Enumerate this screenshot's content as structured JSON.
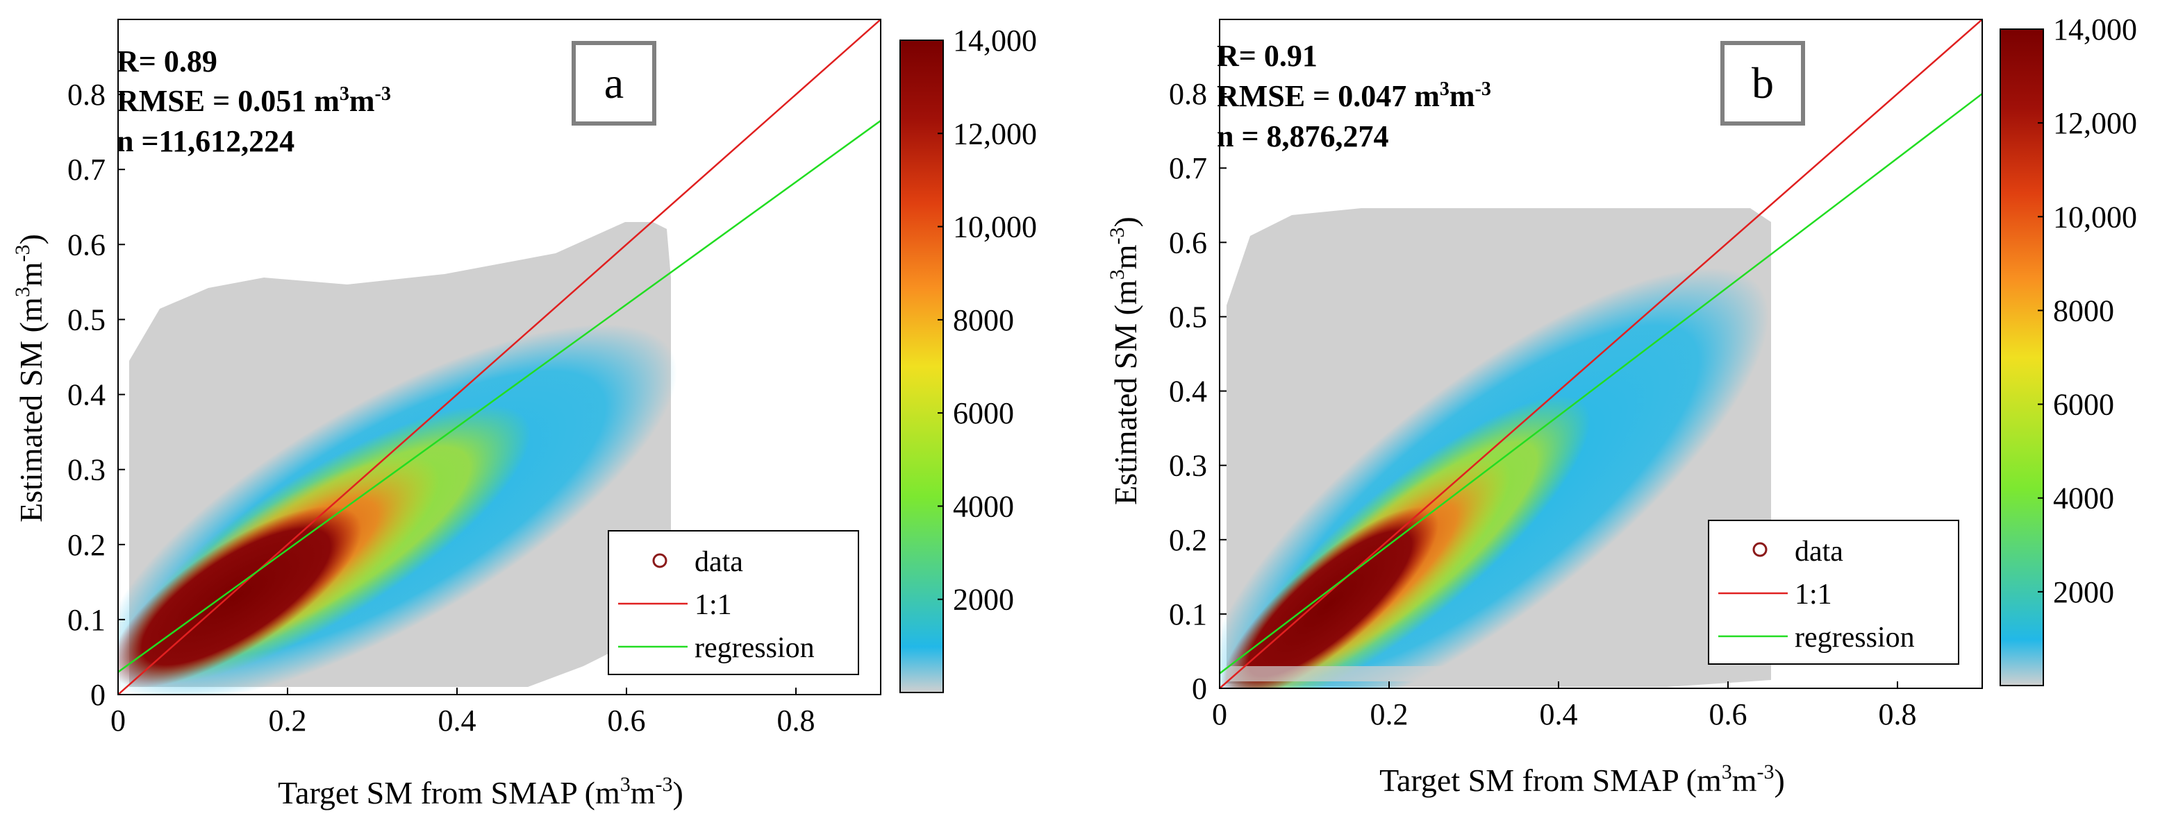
{
  "figure": {
    "panels": [
      {
        "letter": "a",
        "stats": {
          "r": "R= 0.89",
          "rmse_prefix": "RMSE = 0.051 m",
          "rmse_unit_mid": "m",
          "n": "n =11,612,224"
        },
        "xlabel": "Target SM from SMAP",
        "ylabel": "Estimated SM",
        "unit_base": "m",
        "unit_sup3": "3",
        "unit_sup_neg3": "-3",
        "legend": [
          "data",
          "1:1",
          "regression"
        ],
        "colorbar_ticks": [
          "2000",
          "4000",
          "6000",
          "8000",
          "10,000",
          "12,000",
          "14,000"
        ]
      },
      {
        "letter": "b",
        "stats": {
          "r": "R= 0.91",
          "rmse_prefix": "RMSE = 0.047 m",
          "rmse_unit_mid": "m",
          "n": "n = 8,876,274"
        },
        "xlabel": "Target SM from SMAP",
        "ylabel": "Estimated SM",
        "unit_base": "m",
        "unit_sup3": "3",
        "unit_sup_neg3": "-3",
        "legend": [
          "data",
          "1:1",
          "regression"
        ],
        "colorbar_ticks": [
          "2000",
          "4000",
          "6000",
          "8000",
          "10,000",
          "12,000",
          "14,000"
        ]
      }
    ]
  },
  "chart_data": [
    {
      "type": "scatter",
      "title": "a",
      "xlabel": "Target SM from SMAP (m3m-3)",
      "ylabel": "Estimated SM (m3m-3)",
      "xlim": [
        0,
        0.9
      ],
      "ylim": [
        0,
        0.9
      ],
      "x_ticks": [
        0,
        0.2,
        0.4,
        0.6,
        0.8
      ],
      "x_tick_labels": [
        "0",
        "0.2",
        "0.4",
        "0.6",
        "0.8"
      ],
      "y_ticks": [
        0,
        0.1,
        0.2,
        0.3,
        0.4,
        0.5,
        0.6,
        0.7,
        0.8
      ],
      "y_tick_labels": [
        "0",
        "0.1",
        "0.2",
        "0.3",
        "0.4",
        "0.5",
        "0.6",
        "0.7",
        "0.8"
      ],
      "R": 0.89,
      "RMSE": 0.051,
      "n": 11612224,
      "series": [
        {
          "name": "data",
          "kind": "density-scatter",
          "x_range": [
            0.01,
            0.65
          ],
          "y_range": [
            0.02,
            0.65
          ],
          "core_center": [
            0.12,
            0.12
          ],
          "spread_slope": 0.62
        },
        {
          "name": "1:1",
          "kind": "line",
          "x": [
            0,
            0.9
          ],
          "y": [
            0,
            0.9
          ],
          "color": "#e02020"
        },
        {
          "name": "regression",
          "kind": "line",
          "x": [
            0,
            0.9
          ],
          "y": [
            0.03,
            0.765
          ],
          "color": "#22dd22"
        }
      ],
      "colorbar": {
        "min": 0,
        "max": 14000,
        "ticks": [
          2000,
          4000,
          6000,
          8000,
          10000,
          12000,
          14000
        ],
        "colormap": [
          "#d0d0d0",
          "#22b8e8",
          "#7ce830",
          "#f0e020",
          "#f89020",
          "#e04010",
          "#a01008",
          "#7a0000"
        ]
      },
      "legend_position": "bottom-right"
    },
    {
      "type": "scatter",
      "title": "b",
      "xlabel": "Target SM from SMAP (m3m-3)",
      "ylabel": "Estimated SM (m3m-3)",
      "xlim": [
        0,
        0.9
      ],
      "ylim": [
        0,
        0.9
      ],
      "x_ticks": [
        0,
        0.2,
        0.4,
        0.6,
        0.8
      ],
      "x_tick_labels": [
        "0",
        "0.2",
        "0.4",
        "0.6",
        "0.8"
      ],
      "y_ticks": [
        0,
        0.1,
        0.2,
        0.3,
        0.4,
        0.5,
        0.6,
        0.7,
        0.8
      ],
      "y_tick_labels": [
        "0",
        "0.1",
        "0.2",
        "0.3",
        "0.4",
        "0.5",
        "0.6",
        "0.7",
        "0.8"
      ],
      "R": 0.91,
      "RMSE": 0.047,
      "n": 8876274,
      "series": [
        {
          "name": "data",
          "kind": "density-scatter",
          "x_range": [
            0.01,
            0.65
          ],
          "y_range": [
            0.01,
            0.65
          ],
          "core_center": [
            0.12,
            0.11
          ],
          "spread_slope": 0.8
        },
        {
          "name": "1:1",
          "kind": "line",
          "x": [
            0,
            0.9
          ],
          "y": [
            0,
            0.9
          ],
          "color": "#e02020"
        },
        {
          "name": "regression",
          "kind": "line",
          "x": [
            0,
            0.9
          ],
          "y": [
            0.02,
            0.8
          ],
          "color": "#22dd22"
        }
      ],
      "colorbar": {
        "min": 0,
        "max": 14000,
        "ticks": [
          2000,
          4000,
          6000,
          8000,
          10000,
          12000,
          14000
        ],
        "colormap": [
          "#d0d0d0",
          "#22b8e8",
          "#7ce830",
          "#f0e020",
          "#f89020",
          "#e04010",
          "#a01008",
          "#7a0000"
        ]
      },
      "legend_position": "bottom-right"
    }
  ]
}
